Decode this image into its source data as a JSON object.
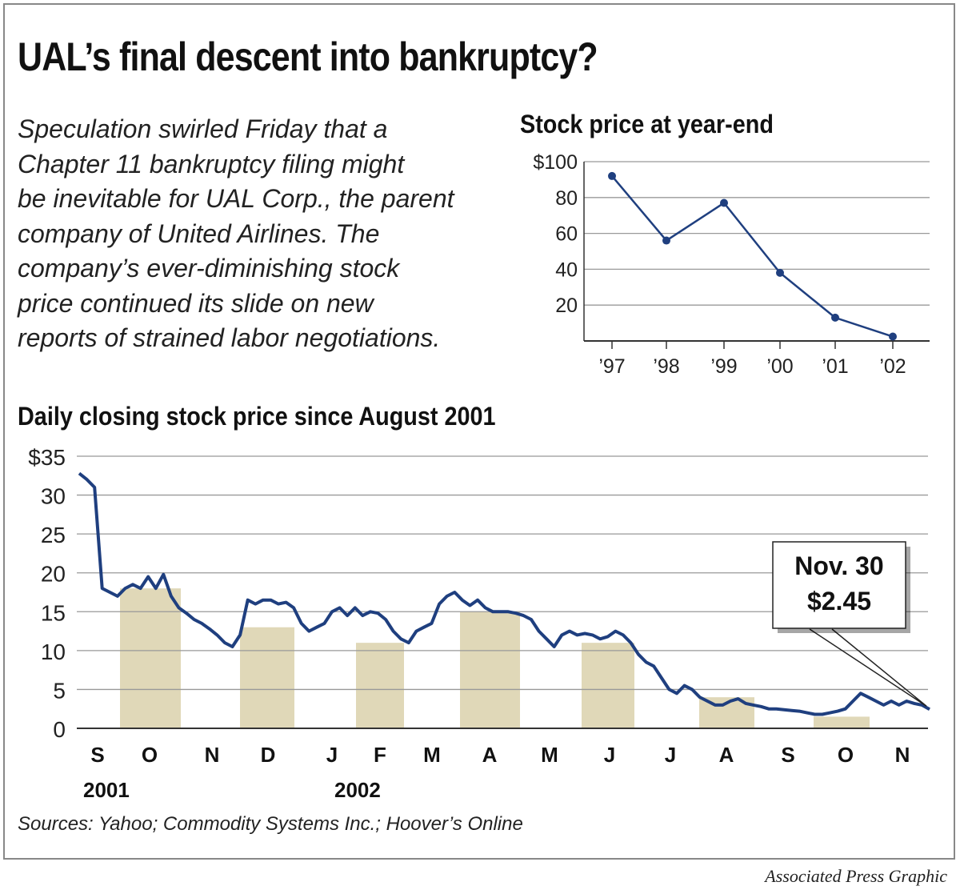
{
  "headline": "UAL’s final descent into bankruptcy?",
  "blurb_lines": [
    "Speculation swirled Friday that a",
    "Chapter 11 bankruptcy filing might",
    "be inevitable for UAL Corp., the parent",
    "company of United Airlines. The",
    "company’s ever-diminishing stock",
    "price continued its slide on new",
    "reports of strained labor negotiations."
  ],
  "sources": "Sources: Yahoo; Commodity Systems Inc.; Hoover’s Online",
  "credit": "Associated Press Graphic",
  "colors": {
    "line": "#1f3f7f",
    "band": "#e0d8b8",
    "grid": "#999999",
    "text": "#222222"
  },
  "chart_data": [
    {
      "type": "line",
      "title": "Stock price at year-end",
      "categories": [
        "’97",
        "’98",
        "’99",
        "’00",
        "’01",
        "’02"
      ],
      "values": [
        92,
        56,
        77,
        38,
        13,
        2.45
      ],
      "ylim": [
        0,
        100
      ],
      "yticks": [
        20,
        40,
        60,
        80,
        100
      ],
      "ytick_labels": [
        "20",
        "40",
        "60",
        "80",
        "$100"
      ],
      "grid": true,
      "markers": true
    },
    {
      "type": "line",
      "title": "Daily closing stock price since August 2001",
      "ylim": [
        0,
        35
      ],
      "yticks": [
        0,
        5,
        10,
        15,
        20,
        25,
        30,
        35
      ],
      "ytick_labels": [
        "0",
        "5",
        "10",
        "15",
        "20",
        "25",
        "30",
        "$35"
      ],
      "grid": true,
      "month_labels": [
        "S",
        "O",
        "N",
        "D",
        "J",
        "F",
        "M",
        "A",
        "M",
        "J",
        "J",
        "A",
        "S",
        "O",
        "N"
      ],
      "year_labels": [
        "2001",
        "2002"
      ],
      "callout": {
        "line1": "Nov. 30",
        "line2": "$2.45"
      },
      "series": [
        {
          "values": [
            32.8,
            32.0,
            31.0,
            18.0,
            17.5,
            17.0,
            18.0,
            18.5,
            18.0,
            19.5,
            18.0,
            19.8,
            17.0,
            15.5,
            14.8,
            14.0,
            13.5,
            12.8,
            12.0,
            11.0,
            10.5,
            12.0,
            16.5,
            16.0,
            16.5,
            16.5,
            16.0,
            16.2,
            15.5,
            13.5,
            12.5,
            13.0,
            13.5,
            15.0,
            15.5,
            14.5,
            15.5,
            14.5,
            15.0,
            14.8,
            14.0,
            12.5,
            11.5,
            11.0,
            12.5,
            13.0,
            13.5,
            16.0,
            17.0,
            17.5,
            16.5,
            15.8,
            16.5,
            15.5,
            15.0,
            15.0,
            15.0,
            14.8,
            14.5,
            14.0,
            12.5,
            11.5,
            10.5,
            12.0,
            12.5,
            12.0,
            12.2,
            12.0,
            11.5,
            11.8,
            12.5,
            12.0,
            11.0,
            9.5,
            8.5,
            8.0,
            6.5,
            5.0,
            4.5,
            5.5,
            5.0,
            4.0,
            3.5,
            3.0,
            3.0,
            3.5,
            3.8,
            3.2,
            3.0,
            2.8,
            2.5,
            2.5,
            2.4,
            2.3,
            2.2,
            2.0,
            1.8,
            1.8,
            2.0,
            2.2,
            2.5,
            3.5,
            4.5,
            4.0,
            3.5,
            3.0,
            3.5,
            3.0,
            3.5,
            3.2,
            3.0,
            2.45
          ]
        }
      ],
      "bands": [
        {
          "label": "O",
          "value": 18
        },
        {
          "label": "D",
          "value": 13
        },
        {
          "label": "F",
          "value": 11
        },
        {
          "label": "A",
          "value": 15
        },
        {
          "label": "J",
          "value": 11
        },
        {
          "label": "A",
          "value": 4
        },
        {
          "label": "O",
          "value": 1.5
        }
      ]
    }
  ]
}
